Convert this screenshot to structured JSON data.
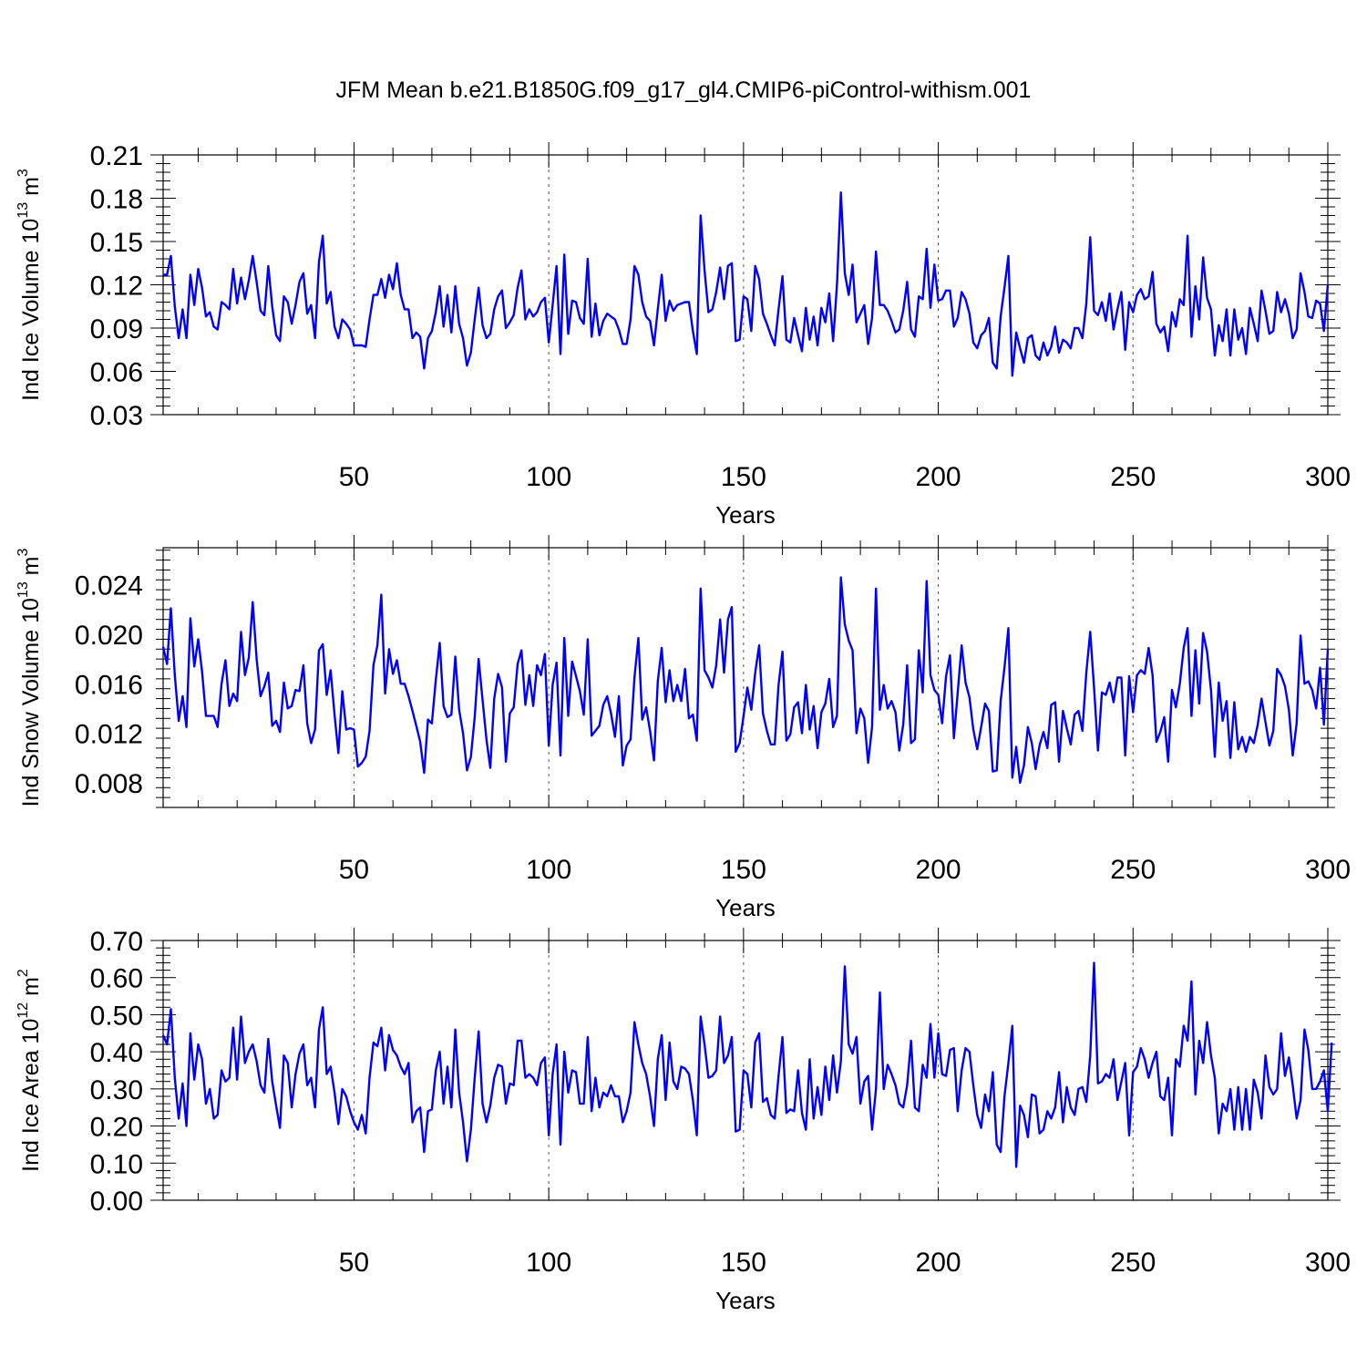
{
  "title": "JFM Mean b.e21.B1850G.f09_g17_gl4.CMIP6-piControl-withism.001",
  "colors": {
    "line": "#0000ff",
    "axis": "#000000",
    "refline": "#555555"
  },
  "chart_data": [
    {
      "type": "line",
      "xlabel": "Years",
      "ylabel": {
        "text": "Ind Ice Volume 10",
        "exp": "13",
        "unit": " m",
        "unit_exp": "3"
      },
      "xlim": [
        1,
        300
      ],
      "ylim": [
        0.03,
        0.21
      ],
      "xticks": [
        50,
        100,
        150,
        200,
        250,
        300
      ],
      "xtick_labels": [
        "50",
        "100",
        "150",
        "200",
        "250",
        "300"
      ],
      "yticks": [
        0.03,
        0.06,
        0.09,
        0.12,
        0.15,
        0.18,
        0.21
      ],
      "ytick_labels": [
        "0.03",
        "0.06",
        "0.09",
        "0.12",
        "0.15",
        "0.18",
        "0.21"
      ],
      "reference_lines_x": [
        50,
        100,
        150,
        200,
        250
      ],
      "x_start": 1,
      "values": [
        0.127,
        0.127,
        0.14,
        0.105,
        0.083,
        0.103,
        0.083,
        0.127,
        0.106,
        0.131,
        0.118,
        0.098,
        0.101,
        0.091,
        0.089,
        0.108,
        0.106,
        0.103,
        0.131,
        0.107,
        0.125,
        0.11,
        0.123,
        0.14,
        0.122,
        0.102,
        0.099,
        0.133,
        0.105,
        0.085,
        0.081,
        0.112,
        0.108,
        0.093,
        0.106,
        0.122,
        0.128,
        0.1,
        0.106,
        0.083,
        0.136,
        0.154,
        0.107,
        0.115,
        0.091,
        0.083,
        0.096,
        0.093,
        0.089,
        0.078,
        0.078,
        0.078,
        0.077,
        0.096,
        0.113,
        0.113,
        0.124,
        0.111,
        0.127,
        0.117,
        0.135,
        0.113,
        0.103,
        0.103,
        0.083,
        0.087,
        0.084,
        0.062,
        0.083,
        0.088,
        0.101,
        0.119,
        0.091,
        0.113,
        0.087,
        0.119,
        0.093,
        0.083,
        0.064,
        0.073,
        0.096,
        0.118,
        0.092,
        0.083,
        0.086,
        0.103,
        0.112,
        0.116,
        0.09,
        0.094,
        0.099,
        0.118,
        0.13,
        0.096,
        0.103,
        0.098,
        0.101,
        0.108,
        0.111,
        0.08,
        0.106,
        0.133,
        0.072,
        0.141,
        0.086,
        0.109,
        0.108,
        0.097,
        0.093,
        0.138,
        0.084,
        0.107,
        0.085,
        0.095,
        0.1,
        0.098,
        0.096,
        0.089,
        0.079,
        0.079,
        0.096,
        0.133,
        0.127,
        0.108,
        0.098,
        0.095,
        0.078,
        0.103,
        0.127,
        0.095,
        0.109,
        0.102,
        0.106,
        0.107,
        0.108,
        0.108,
        0.088,
        0.072,
        0.168,
        0.13,
        0.101,
        0.103,
        0.115,
        0.132,
        0.11,
        0.133,
        0.135,
        0.081,
        0.082,
        0.112,
        0.11,
        0.088,
        0.133,
        0.124,
        0.1,
        0.093,
        0.085,
        0.078,
        0.103,
        0.126,
        0.082,
        0.08,
        0.097,
        0.085,
        0.074,
        0.104,
        0.082,
        0.098,
        0.078,
        0.104,
        0.094,
        0.114,
        0.081,
        0.12,
        0.184,
        0.128,
        0.113,
        0.134,
        0.094,
        0.1,
        0.106,
        0.079,
        0.097,
        0.143,
        0.106,
        0.106,
        0.102,
        0.095,
        0.087,
        0.089,
        0.102,
        0.122,
        0.089,
        0.084,
        0.112,
        0.11,
        0.145,
        0.104,
        0.134,
        0.109,
        0.11,
        0.116,
        0.116,
        0.091,
        0.097,
        0.115,
        0.11,
        0.1,
        0.08,
        0.076,
        0.085,
        0.088,
        0.097,
        0.066,
        0.062,
        0.098,
        0.118,
        0.14,
        0.057,
        0.087,
        0.076,
        0.066,
        0.083,
        0.085,
        0.071,
        0.068,
        0.08,
        0.071,
        0.077,
        0.091,
        0.073,
        0.082,
        0.08,
        0.076,
        0.09,
        0.09,
        0.083,
        0.107,
        0.153,
        0.102,
        0.099,
        0.108,
        0.095,
        0.114,
        0.089,
        0.103,
        0.115,
        0.075,
        0.108,
        0.101,
        0.113,
        0.117,
        0.11,
        0.112,
        0.129,
        0.093,
        0.087,
        0.091,
        0.074,
        0.101,
        0.091,
        0.11,
        0.106,
        0.154,
        0.084,
        0.119,
        0.096,
        0.139,
        0.111,
        0.103,
        0.071,
        0.092,
        0.081,
        0.103,
        0.071,
        0.103,
        0.082,
        0.09,
        0.072,
        0.104,
        0.093,
        0.081,
        0.116,
        0.102,
        0.086,
        0.088,
        0.115,
        0.101,
        0.11,
        0.1,
        0.083,
        0.089,
        0.128,
        0.115,
        0.098,
        0.097,
        0.109,
        0.107,
        0.088,
        0.12
      ]
    },
    {
      "type": "line",
      "xlabel": "Years",
      "ylabel": {
        "text": "Ind Snow Volume 10",
        "exp": "13",
        "unit": " m",
        "unit_exp": "3"
      },
      "xlim": [
        1,
        300
      ],
      "ylim": [
        0.006,
        0.027
      ],
      "xticks": [
        50,
        100,
        150,
        200,
        250,
        300
      ],
      "xtick_labels": [
        "50",
        "100",
        "150",
        "200",
        "250",
        "300"
      ],
      "yticks": [
        0.008,
        0.012,
        0.016,
        0.02,
        0.024
      ],
      "ytick_labels": [
        "0.008",
        "0.012",
        "0.016",
        "0.020",
        "0.024"
      ],
      "reference_lines_x": [
        50,
        100,
        150,
        200,
        250
      ],
      "x_start": 1,
      "values": [
        0.019,
        0.0176,
        0.0221,
        0.0167,
        0.013,
        0.015,
        0.0125,
        0.0213,
        0.0174,
        0.0196,
        0.017,
        0.0134,
        0.0134,
        0.0134,
        0.0125,
        0.016,
        0.0179,
        0.0142,
        0.0152,
        0.0146,
        0.0202,
        0.0167,
        0.0181,
        0.0226,
        0.018,
        0.015,
        0.0158,
        0.0169,
        0.0126,
        0.013,
        0.0121,
        0.0161,
        0.014,
        0.0142,
        0.0155,
        0.0154,
        0.0175,
        0.0128,
        0.0112,
        0.0123,
        0.0187,
        0.0192,
        0.0151,
        0.0171,
        0.0135,
        0.0104,
        0.0154,
        0.0123,
        0.0124,
        0.0123,
        0.0093,
        0.0096,
        0.0101,
        0.0122,
        0.0175,
        0.0191,
        0.0232,
        0.0152,
        0.0188,
        0.0168,
        0.0179,
        0.016,
        0.016,
        0.015,
        0.0138,
        0.0126,
        0.0113,
        0.0088,
        0.0131,
        0.0128,
        0.0163,
        0.0193,
        0.0142,
        0.0133,
        0.0135,
        0.0182,
        0.0139,
        0.012,
        0.009,
        0.0101,
        0.0133,
        0.018,
        0.0147,
        0.0115,
        0.0092,
        0.0148,
        0.0168,
        0.0157,
        0.0097,
        0.0136,
        0.0141,
        0.0176,
        0.0187,
        0.0143,
        0.0167,
        0.0142,
        0.0175,
        0.0167,
        0.0184,
        0.011,
        0.0159,
        0.0177,
        0.0102,
        0.0197,
        0.0134,
        0.0178,
        0.0166,
        0.0154,
        0.0135,
        0.0196,
        0.0118,
        0.0122,
        0.0126,
        0.0143,
        0.015,
        0.0136,
        0.0117,
        0.015,
        0.0094,
        0.011,
        0.0115,
        0.0165,
        0.0197,
        0.0131,
        0.0141,
        0.0122,
        0.0098,
        0.0162,
        0.0189,
        0.0145,
        0.0171,
        0.0146,
        0.0159,
        0.0146,
        0.0172,
        0.0132,
        0.0135,
        0.0114,
        0.0237,
        0.0171,
        0.0165,
        0.0157,
        0.0175,
        0.0212,
        0.0169,
        0.0212,
        0.0222,
        0.0105,
        0.0112,
        0.0134,
        0.0157,
        0.0139,
        0.0169,
        0.0191,
        0.0136,
        0.0122,
        0.0111,
        0.0111,
        0.0159,
        0.0186,
        0.0114,
        0.0119,
        0.0141,
        0.0145,
        0.012,
        0.0159,
        0.0123,
        0.0142,
        0.0108,
        0.0137,
        0.0144,
        0.0164,
        0.0125,
        0.0134,
        0.0246,
        0.0208,
        0.0195,
        0.0187,
        0.012,
        0.014,
        0.0132,
        0.0096,
        0.0125,
        0.0237,
        0.0139,
        0.0159,
        0.014,
        0.0146,
        0.0137,
        0.0106,
        0.0127,
        0.0175,
        0.0112,
        0.0115,
        0.0187,
        0.0153,
        0.0243,
        0.0167,
        0.0155,
        0.0151,
        0.0128,
        0.0166,
        0.0183,
        0.0116,
        0.0153,
        0.0191,
        0.0161,
        0.0149,
        0.0123,
        0.0107,
        0.0125,
        0.0144,
        0.0138,
        0.0089,
        0.009,
        0.0146,
        0.0173,
        0.0205,
        0.0084,
        0.0109,
        0.008,
        0.0094,
        0.0125,
        0.0112,
        0.0091,
        0.011,
        0.0121,
        0.0108,
        0.0143,
        0.0145,
        0.0097,
        0.0138,
        0.0124,
        0.0111,
        0.0135,
        0.0138,
        0.0122,
        0.0169,
        0.0202,
        0.0157,
        0.0106,
        0.0153,
        0.0151,
        0.0161,
        0.0145,
        0.0165,
        0.0165,
        0.0102,
        0.0166,
        0.0137,
        0.0167,
        0.0171,
        0.0168,
        0.0189,
        0.0167,
        0.0113,
        0.0121,
        0.0133,
        0.0097,
        0.0155,
        0.0141,
        0.016,
        0.0189,
        0.0205,
        0.0134,
        0.0187,
        0.0144,
        0.0201,
        0.0186,
        0.0155,
        0.0101,
        0.0161,
        0.013,
        0.0146,
        0.01,
        0.0145,
        0.0107,
        0.0117,
        0.0105,
        0.0117,
        0.0112,
        0.0127,
        0.0148,
        0.0129,
        0.011,
        0.0122,
        0.0172,
        0.0167,
        0.0158,
        0.0139,
        0.0102,
        0.0128,
        0.0199,
        0.016,
        0.0162,
        0.0155,
        0.014,
        0.0173,
        0.0127,
        0.0188
      ]
    },
    {
      "type": "line",
      "xlabel": "Years",
      "ylabel": {
        "text": "Ind Ice Area 10",
        "exp": "12",
        "unit": " m",
        "unit_exp": "2"
      },
      "xlim": [
        1,
        300
      ],
      "ylim": [
        0.0,
        0.7
      ],
      "xticks": [
        50,
        100,
        150,
        200,
        250,
        300
      ],
      "xtick_labels": [
        "50",
        "100",
        "150",
        "200",
        "250",
        "300"
      ],
      "yticks": [
        0.0,
        0.1,
        0.2,
        0.3,
        0.4,
        0.5,
        0.6,
        0.7
      ],
      "ytick_labels": [
        "0.00",
        "0.10",
        "0.20",
        "0.30",
        "0.40",
        "0.50",
        "0.60",
        "0.70"
      ],
      "reference_lines_x": [
        50,
        100,
        150,
        200,
        250
      ],
      "x_start": 1,
      "values": [
        0.445,
        0.42,
        0.515,
        0.33,
        0.22,
        0.315,
        0.2,
        0.45,
        0.325,
        0.42,
        0.38,
        0.26,
        0.3,
        0.22,
        0.23,
        0.35,
        0.32,
        0.33,
        0.465,
        0.325,
        0.495,
        0.37,
        0.4,
        0.42,
        0.375,
        0.31,
        0.29,
        0.435,
        0.32,
        0.255,
        0.195,
        0.39,
        0.37,
        0.25,
        0.34,
        0.395,
        0.42,
        0.31,
        0.33,
        0.25,
        0.46,
        0.52,
        0.34,
        0.36,
        0.29,
        0.205,
        0.3,
        0.28,
        0.24,
        0.21,
        0.19,
        0.23,
        0.18,
        0.33,
        0.425,
        0.415,
        0.465,
        0.35,
        0.445,
        0.405,
        0.39,
        0.36,
        0.34,
        0.37,
        0.21,
        0.24,
        0.25,
        0.13,
        0.24,
        0.245,
        0.35,
        0.4,
        0.26,
        0.36,
        0.25,
        0.46,
        0.29,
        0.21,
        0.105,
        0.19,
        0.33,
        0.455,
        0.26,
        0.21,
        0.255,
        0.33,
        0.365,
        0.36,
        0.26,
        0.315,
        0.31,
        0.43,
        0.43,
        0.33,
        0.34,
        0.33,
        0.31,
        0.37,
        0.385,
        0.175,
        0.34,
        0.42,
        0.15,
        0.4,
        0.29,
        0.35,
        0.345,
        0.26,
        0.26,
        0.44,
        0.24,
        0.33,
        0.25,
        0.29,
        0.28,
        0.31,
        0.28,
        0.28,
        0.21,
        0.24,
        0.29,
        0.48,
        0.42,
        0.37,
        0.34,
        0.28,
        0.2,
        0.38,
        0.445,
        0.27,
        0.425,
        0.32,
        0.3,
        0.36,
        0.355,
        0.34,
        0.27,
        0.175,
        0.495,
        0.42,
        0.33,
        0.335,
        0.35,
        0.495,
        0.37,
        0.39,
        0.44,
        0.185,
        0.19,
        0.35,
        0.34,
        0.25,
        0.425,
        0.45,
        0.265,
        0.275,
        0.23,
        0.22,
        0.335,
        0.44,
        0.235,
        0.245,
        0.24,
        0.35,
        0.235,
        0.19,
        0.38,
        0.22,
        0.305,
        0.23,
        0.36,
        0.27,
        0.39,
        0.29,
        0.375,
        0.63,
        0.42,
        0.395,
        0.44,
        0.26,
        0.32,
        0.335,
        0.19,
        0.3,
        0.56,
        0.3,
        0.365,
        0.34,
        0.31,
        0.26,
        0.25,
        0.31,
        0.43,
        0.25,
        0.24,
        0.365,
        0.33,
        0.475,
        0.33,
        0.45,
        0.34,
        0.335,
        0.405,
        0.41,
        0.24,
        0.35,
        0.41,
        0.4,
        0.31,
        0.23,
        0.195,
        0.285,
        0.24,
        0.345,
        0.15,
        0.13,
        0.28,
        0.37,
        0.47,
        0.09,
        0.255,
        0.23,
        0.17,
        0.285,
        0.28,
        0.18,
        0.19,
        0.24,
        0.22,
        0.25,
        0.345,
        0.21,
        0.305,
        0.25,
        0.23,
        0.3,
        0.305,
        0.265,
        0.39,
        0.64,
        0.315,
        0.32,
        0.34,
        0.33,
        0.38,
        0.27,
        0.32,
        0.37,
        0.175,
        0.345,
        0.36,
        0.41,
        0.38,
        0.33,
        0.37,
        0.4,
        0.28,
        0.27,
        0.33,
        0.175,
        0.38,
        0.36,
        0.47,
        0.43,
        0.59,
        0.285,
        0.43,
        0.37,
        0.48,
        0.39,
        0.33,
        0.18,
        0.26,
        0.24,
        0.3,
        0.19,
        0.305,
        0.19,
        0.3,
        0.19,
        0.325,
        0.29,
        0.22,
        0.39,
        0.305,
        0.285,
        0.3,
        0.45,
        0.335,
        0.385,
        0.31,
        0.22,
        0.27,
        0.46,
        0.405,
        0.3,
        0.3,
        0.32,
        0.35,
        0.24,
        0.425
      ]
    }
  ]
}
